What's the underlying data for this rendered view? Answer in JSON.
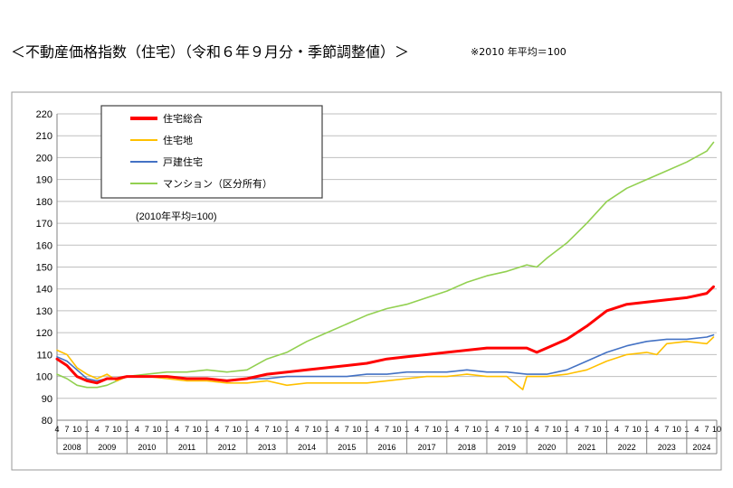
{
  "header": {
    "title": "＜不動産価格指数（住宅）（令和６年９月分・季節調整値）＞",
    "note": "※2010 年平均＝100"
  },
  "chart_data": {
    "type": "line",
    "note_inside": "(2010年平均=100)",
    "ylim": [
      80,
      220
    ],
    "yticks": [
      80,
      90,
      100,
      110,
      120,
      130,
      140,
      150,
      160,
      170,
      180,
      190,
      200,
      210,
      220
    ],
    "years": [
      "2008",
      "2009",
      "2010",
      "2011",
      "2012",
      "2013",
      "2014",
      "2015",
      "2016",
      "2017",
      "2018",
      "2019",
      "2020",
      "2021",
      "2022",
      "2023",
      "2024"
    ],
    "month_ticks": [
      "4",
      "7",
      "10",
      "1"
    ],
    "grid": "horizontal",
    "legend_position": "top-left",
    "series": [
      {
        "name": "住宅総合",
        "color": "#ff0000",
        "width": 3,
        "x": [
          2008.25,
          2008.5,
          2008.75,
          2009.0,
          2009.25,
          2009.5,
          2009.75,
          2010.0,
          2010.5,
          2011.0,
          2011.5,
          2012.0,
          2012.5,
          2013.0,
          2013.5,
          2014.0,
          2014.5,
          2015.0,
          2015.5,
          2016.0,
          2016.5,
          2017.0,
          2017.5,
          2018.0,
          2018.5,
          2019.0,
          2019.5,
          2020.0,
          2020.25,
          2020.5,
          2020.75,
          2021.0,
          2021.5,
          2022.0,
          2022.5,
          2023.0,
          2023.5,
          2024.0,
          2024.5,
          2024.67
        ],
        "values": [
          108,
          105,
          100,
          98,
          97,
          99,
          99,
          100,
          100,
          100,
          99,
          99,
          98,
          99,
          101,
          102,
          103,
          104,
          105,
          106,
          108,
          109,
          110,
          111,
          112,
          113,
          113,
          113,
          111,
          113,
          115,
          117,
          123,
          130,
          133,
          134,
          135,
          136,
          138,
          141
        ]
      },
      {
        "name": "住宅地",
        "color": "#ffc000",
        "width": 1.6,
        "x": [
          2008.25,
          2008.5,
          2008.75,
          2009.0,
          2009.25,
          2009.5,
          2009.75,
          2010.0,
          2010.5,
          2011.0,
          2011.5,
          2012.0,
          2012.5,
          2013.0,
          2013.5,
          2014.0,
          2014.5,
          2015.0,
          2015.5,
          2016.0,
          2016.5,
          2017.0,
          2017.5,
          2018.0,
          2018.5,
          2019.0,
          2019.5,
          2019.9,
          2020.0,
          2020.5,
          2021.0,
          2021.5,
          2022.0,
          2022.5,
          2023.0,
          2023.25,
          2023.5,
          2024.0,
          2024.5,
          2024.67
        ],
        "values": [
          112,
          110,
          104,
          101,
          99,
          101,
          98,
          100,
          100,
          99,
          98,
          98,
          97,
          97,
          98,
          96,
          97,
          97,
          97,
          97,
          98,
          99,
          100,
          100,
          101,
          100,
          100,
          94,
          100,
          100,
          101,
          103,
          107,
          110,
          111,
          110,
          115,
          116,
          115,
          118
        ]
      },
      {
        "name": "戸建住宅",
        "color": "#4472c4",
        "width": 1.6,
        "x": [
          2008.25,
          2008.5,
          2008.75,
          2009.0,
          2009.25,
          2009.5,
          2009.75,
          2010.0,
          2010.5,
          2011.0,
          2011.5,
          2012.0,
          2012.5,
          2013.0,
          2013.5,
          2014.0,
          2014.5,
          2015.0,
          2015.5,
          2016.0,
          2016.5,
          2017.0,
          2017.5,
          2018.0,
          2018.5,
          2019.0,
          2019.5,
          2020.0,
          2020.5,
          2021.0,
          2021.5,
          2022.0,
          2022.5,
          2023.0,
          2023.5,
          2024.0,
          2024.5,
          2024.67
        ],
        "values": [
          109,
          107,
          103,
          99,
          98,
          99,
          99,
          100,
          100,
          100,
          99,
          99,
          98,
          99,
          99,
          100,
          100,
          100,
          100,
          101,
          101,
          102,
          102,
          102,
          103,
          102,
          102,
          101,
          101,
          103,
          107,
          111,
          114,
          116,
          117,
          117,
          118,
          119
        ]
      },
      {
        "name": "マンション（区分所有）",
        "color": "#92d050",
        "width": 1.6,
        "x": [
          2008.25,
          2008.5,
          2008.75,
          2009.0,
          2009.25,
          2009.5,
          2009.75,
          2010.0,
          2010.5,
          2011.0,
          2011.5,
          2012.0,
          2012.5,
          2013.0,
          2013.5,
          2014.0,
          2014.5,
          2015.0,
          2015.5,
          2016.0,
          2016.5,
          2017.0,
          2017.5,
          2018.0,
          2018.5,
          2019.0,
          2019.5,
          2020.0,
          2020.25,
          2020.5,
          2021.0,
          2021.5,
          2022.0,
          2022.5,
          2023.0,
          2023.5,
          2024.0,
          2024.5,
          2024.67
        ],
        "values": [
          101,
          99,
          96,
          95,
          95,
          96,
          98,
          100,
          101,
          102,
          102,
          103,
          102,
          103,
          108,
          111,
          116,
          120,
          124,
          128,
          131,
          133,
          136,
          139,
          143,
          146,
          148,
          151,
          150,
          154,
          161,
          170,
          180,
          186,
          190,
          194,
          198,
          203,
          207
        ]
      }
    ]
  }
}
